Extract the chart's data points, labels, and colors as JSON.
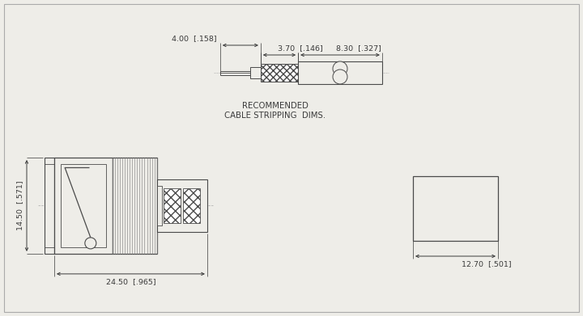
{
  "bg_color": "#eeede8",
  "line_color": "#4a4a4a",
  "text_color": "#3a3a3a",
  "dim1_label": "3.70  [.146]",
  "dim2_label": "4.00  [.158]",
  "dim3_label": "8.30  [.327]",
  "dim4_label": "14.50  [.571]",
  "dim5_label": "24.50  [.965]",
  "dim6_label": "12.70  [.501]",
  "title_line1": "RECOMMENDED",
  "title_line2": "CABLE STRIPPING  DIMS.",
  "font_size": 6.8
}
